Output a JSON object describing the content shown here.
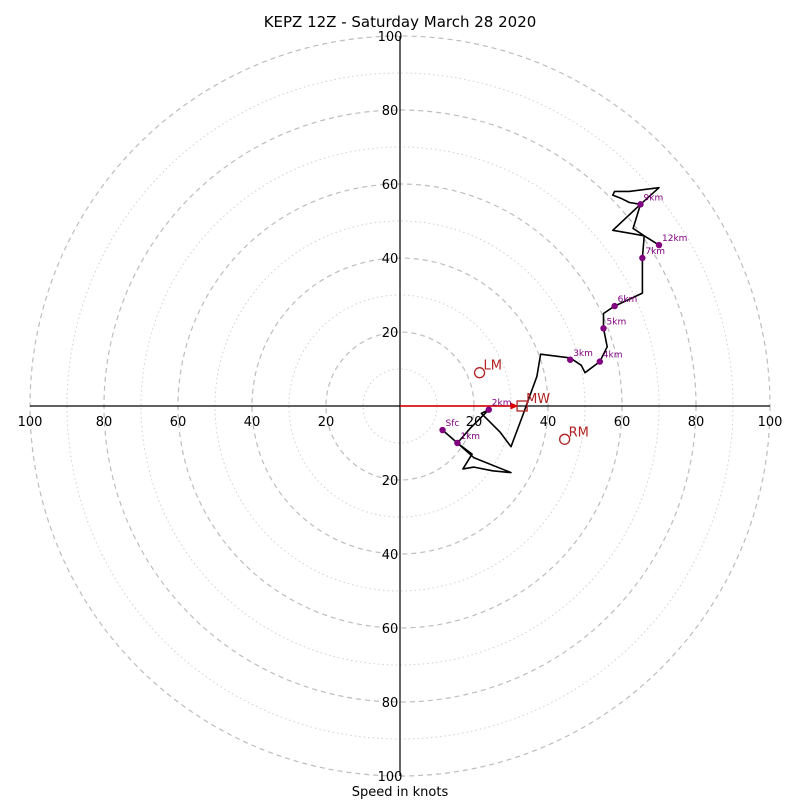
{
  "chart_data": {
    "type": "scatter",
    "title": "KEPZ 12Z - Saturday March 28 2020",
    "xlabel": "Speed in knots",
    "axis_range": [
      -100,
      100
    ],
    "ring_major": [
      20,
      40,
      60,
      80,
      100
    ],
    "ring_minor": [
      10,
      30,
      50,
      70,
      90
    ],
    "x_ticks": [
      {
        "value": -100,
        "label": "100"
      },
      {
        "value": -80,
        "label": "80"
      },
      {
        "value": -60,
        "label": "60"
      },
      {
        "value": -40,
        "label": "40"
      },
      {
        "value": -20,
        "label": "20"
      },
      {
        "value": 20,
        "label": "20"
      },
      {
        "value": 40,
        "label": "40"
      },
      {
        "value": 60,
        "label": "60"
      },
      {
        "value": 80,
        "label": "80"
      },
      {
        "value": 100,
        "label": "100"
      }
    ],
    "y_ticks": [
      {
        "value": 100,
        "label": "100"
      },
      {
        "value": 80,
        "label": "80"
      },
      {
        "value": 60,
        "label": "60"
      },
      {
        "value": 40,
        "label": "40"
      },
      {
        "value": 20,
        "label": "20"
      },
      {
        "value": -20,
        "label": "20"
      },
      {
        "value": -40,
        "label": "40"
      },
      {
        "value": -60,
        "label": "60"
      },
      {
        "value": -80,
        "label": "80"
      },
      {
        "value": -100,
        "label": "100"
      }
    ],
    "hodograph": {
      "color": "#000000",
      "points": [
        [
          11.5,
          -6.5
        ],
        [
          15.5,
          -10
        ],
        [
          19.5,
          -13
        ],
        [
          17,
          -17
        ],
        [
          20,
          -16.5
        ],
        [
          25,
          -17.5
        ],
        [
          30,
          -18
        ],
        [
          20,
          -14
        ],
        [
          15.5,
          -10
        ],
        [
          19,
          -6
        ],
        [
          23,
          -2
        ],
        [
          24,
          -1
        ],
        [
          22,
          -2
        ],
        [
          27,
          -7
        ],
        [
          30,
          -11
        ],
        [
          33,
          -3
        ],
        [
          37,
          8
        ],
        [
          38,
          14
        ],
        [
          46,
          13
        ],
        [
          49,
          11
        ],
        [
          50,
          9
        ],
        [
          54,
          12
        ],
        [
          56,
          16
        ],
        [
          55,
          21
        ],
        [
          55,
          25
        ],
        [
          58,
          27
        ],
        [
          65.5,
          30.5
        ],
        [
          65.5,
          35
        ],
        [
          65.5,
          40
        ],
        [
          66,
          46
        ],
        [
          57.5,
          47.5
        ],
        [
          65,
          54.5
        ],
        [
          70,
          59
        ],
        [
          62,
          58
        ],
        [
          58,
          58
        ],
        [
          57.5,
          57
        ],
        [
          60,
          56
        ],
        [
          62,
          55
        ],
        [
          65,
          54.5
        ],
        [
          63,
          48
        ],
        [
          66,
          46
        ],
        [
          70,
          43.5
        ]
      ]
    },
    "height_markers": [
      {
        "label": "Sfc",
        "x": 11.5,
        "y": -6.5
      },
      {
        "label": "1km",
        "x": 15.5,
        "y": -10
      },
      {
        "label": "2km",
        "x": 24,
        "y": -1
      },
      {
        "label": "3km",
        "x": 46,
        "y": 12.5
      },
      {
        "label": "4km",
        "x": 54,
        "y": 12
      },
      {
        "label": "5km",
        "x": 55,
        "y": 21
      },
      {
        "label": "6km",
        "x": 58,
        "y": 27
      },
      {
        "label": "7km",
        "x": 65.5,
        "y": 40
      },
      {
        "label": "9km",
        "x": 65,
        "y": 54.5
      },
      {
        "label": "12km",
        "x": 70,
        "y": 43.5
      }
    ],
    "storm_motion": [
      {
        "label": "LM",
        "x": 21.5,
        "y": 9,
        "shape": "circle"
      },
      {
        "label": "MW",
        "x": 33,
        "y": 0,
        "shape": "square"
      },
      {
        "label": "RM",
        "x": 44.5,
        "y": -9,
        "shape": "circle"
      }
    ],
    "shear_vector": {
      "x1": 0,
      "y1": 0,
      "x2": 32,
      "y2": 0,
      "color": "#e00000"
    },
    "colors": {
      "rings": "#bdbdbd",
      "hodograph": "#000000",
      "height_markers": "#800080",
      "storm_motion": "#b22222",
      "shear_vector": "#e00000"
    }
  }
}
